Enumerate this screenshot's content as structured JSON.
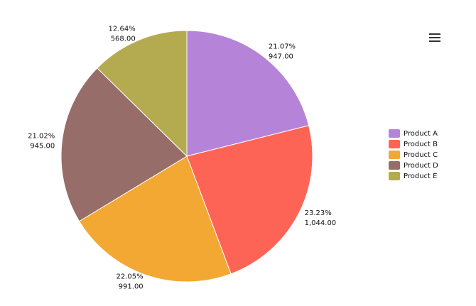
{
  "chart_data": {
    "type": "pie",
    "categories": [
      "Product A",
      "Product B",
      "Product C",
      "Product D",
      "Product E"
    ],
    "values": [
      947,
      1044,
      991,
      945,
      568
    ],
    "value_labels": [
      "947.00",
      "1,044.00",
      "991.00",
      "945.00",
      "568.00"
    ],
    "percent_labels": [
      "21.07%",
      "23.23%",
      "22.05%",
      "21.02%",
      "12.64%"
    ],
    "colors": [
      "#b584d8",
      "#fd6456",
      "#f2a832",
      "#966d68",
      "#b4ab50"
    ],
    "legend": "right"
  }
}
